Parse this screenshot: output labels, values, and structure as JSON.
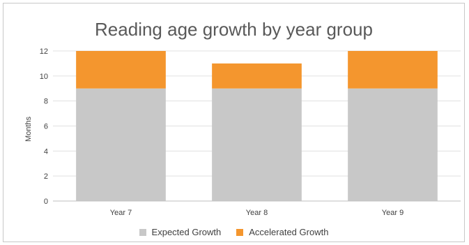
{
  "chart_data": {
    "type": "bar",
    "stacked": true,
    "title": "Reading age growth by year group",
    "xlabel": "",
    "ylabel": "Months",
    "categories": [
      "Year 7",
      "Year 8",
      "Year 9"
    ],
    "series": [
      {
        "name": "Expected Growth",
        "values": [
          9,
          9,
          9
        ],
        "color": "#c8c8c8"
      },
      {
        "name": "Accelerated Growth",
        "values": [
          3,
          2,
          3
        ],
        "color": "#f4962e"
      }
    ],
    "ylim": [
      0,
      12
    ],
    "yticks": [
      "0",
      "2",
      "4",
      "6",
      "8",
      "10",
      "12"
    ],
    "grid": true,
    "legend": "bottom"
  }
}
